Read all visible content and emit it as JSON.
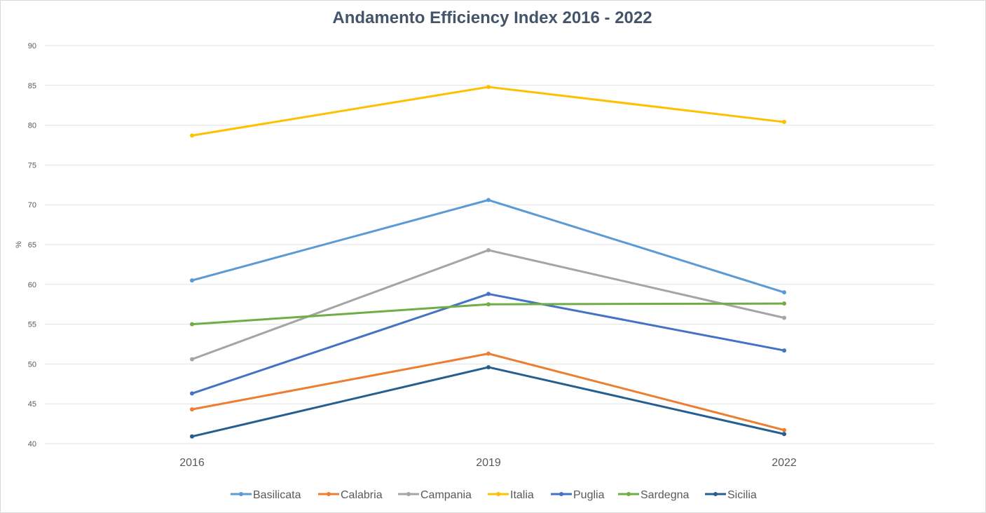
{
  "chart_data": {
    "type": "line",
    "title": "Andamento Efficiency Index 2016 - 2022",
    "xlabel": "",
    "ylabel": "%",
    "categories": [
      "2016",
      "2019",
      "2022"
    ],
    "ylim": [
      40,
      90
    ],
    "yticks": [
      40,
      45,
      50,
      55,
      60,
      65,
      70,
      75,
      80,
      85,
      90
    ],
    "grid": true,
    "legend_position": "bottom",
    "series": [
      {
        "name": "Basilicata",
        "color": "#5b9bd5",
        "values": [
          60.5,
          70.6,
          59.0
        ]
      },
      {
        "name": "Calabria",
        "color": "#ed7d31",
        "values": [
          44.3,
          51.3,
          41.7
        ]
      },
      {
        "name": "Campania",
        "color": "#a5a5a5",
        "values": [
          50.6,
          64.3,
          55.8
        ]
      },
      {
        "name": "Italia",
        "color": "#ffc000",
        "values": [
          78.7,
          84.8,
          80.4
        ]
      },
      {
        "name": "Puglia",
        "color": "#4472c4",
        "values": [
          46.3,
          58.8,
          51.7
        ]
      },
      {
        "name": "Sardegna",
        "color": "#70ad47",
        "values": [
          55.0,
          57.5,
          57.6
        ]
      },
      {
        "name": "Sicilia",
        "color": "#255e91",
        "values": [
          40.9,
          49.6,
          41.2
        ]
      }
    ]
  }
}
